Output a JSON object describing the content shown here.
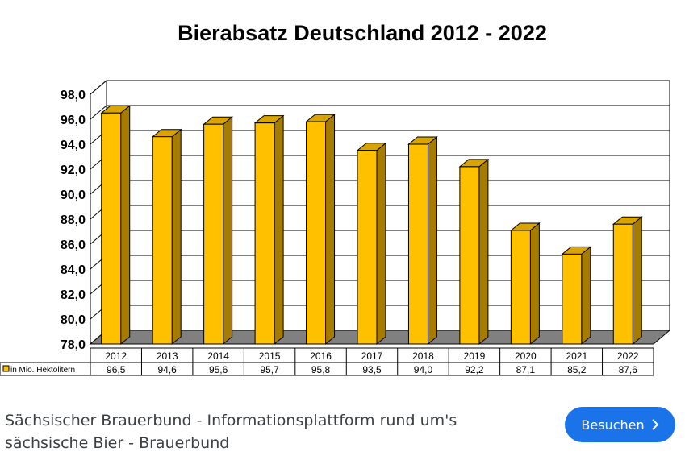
{
  "chart_data": {
    "type": "bar",
    "title": "Bierabsatz Deutschland 2012 - 2022",
    "categories": [
      "2012",
      "2013",
      "2014",
      "2015",
      "2016",
      "2017",
      "2018",
      "2019",
      "2020",
      "2021",
      "2022"
    ],
    "series": [
      {
        "name": "in Mio. Hektolitern",
        "values": [
          96.5,
          94.6,
          95.6,
          95.7,
          95.8,
          93.5,
          94.0,
          92.2,
          87.1,
          85.2,
          87.6
        ],
        "labels": [
          "96,5",
          "94,6",
          "95,6",
          "95,7",
          "95,8",
          "93,5",
          "94,0",
          "92,2",
          "87,1",
          "85,2",
          "87,6"
        ]
      }
    ],
    "ylim": [
      78,
      98
    ],
    "yticks": [
      "78,0",
      "80,0",
      "82,0",
      "84,0",
      "86,0",
      "88,0",
      "90,0",
      "92,0",
      "94,0",
      "96,0",
      "98,0"
    ],
    "grid": true,
    "legend": "data table below chart",
    "colors": {
      "bar_front": "#ffc000",
      "bar_side": "#a67c00",
      "bar_top": "#d9a400",
      "floor": "#808080"
    }
  },
  "caption": {
    "line1": "Sächsischer Brauerbund - Informationsplattform rund um's",
    "line2": "sächsische Bier - Brauerbund"
  },
  "button": {
    "label": "Besuchen",
    "icon": "chevron-right-icon"
  }
}
